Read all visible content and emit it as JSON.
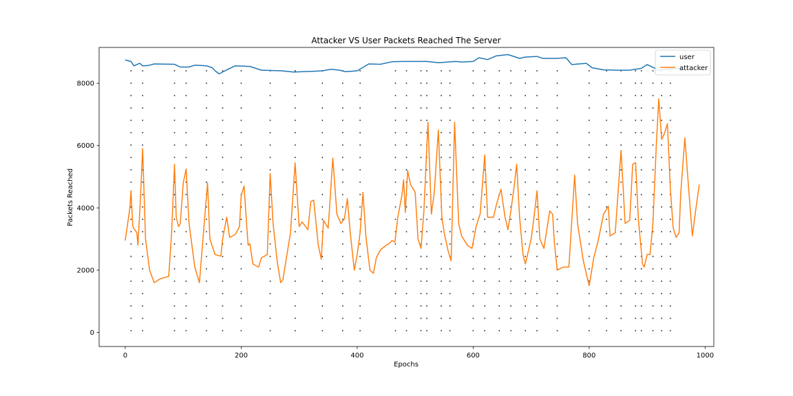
{
  "chart_data": {
    "type": "line",
    "title": "Attacker VS User Packets Reached The Server",
    "xlabel": "Epochs",
    "ylabel": "Packets Reached",
    "xlim": [
      -45,
      1015
    ],
    "ylim": [
      -450,
      9150
    ],
    "x_ticks": [
      0,
      200,
      400,
      600,
      800,
      1000
    ],
    "y_ticks": [
      0,
      2000,
      4000,
      6000,
      8000
    ],
    "grid": false,
    "legend": "top-right",
    "colors": {
      "user": "#1f77b4",
      "attacker": "#ff7f0e",
      "markers": "#444444"
    },
    "series": [
      {
        "name": "user",
        "points": [
          [
            0,
            8750
          ],
          [
            10,
            8700
          ],
          [
            15,
            8560
          ],
          [
            25,
            8640
          ],
          [
            30,
            8560
          ],
          [
            40,
            8570
          ],
          [
            50,
            8620
          ],
          [
            85,
            8610
          ],
          [
            95,
            8520
          ],
          [
            110,
            8520
          ],
          [
            120,
            8580
          ],
          [
            140,
            8560
          ],
          [
            150,
            8500
          ],
          [
            155,
            8400
          ],
          [
            162,
            8300
          ],
          [
            175,
            8430
          ],
          [
            190,
            8560
          ],
          [
            215,
            8540
          ],
          [
            235,
            8420
          ],
          [
            270,
            8400
          ],
          [
            290,
            8360
          ],
          [
            320,
            8380
          ],
          [
            340,
            8400
          ],
          [
            355,
            8450
          ],
          [
            370,
            8420
          ],
          [
            380,
            8370
          ],
          [
            400,
            8400
          ],
          [
            410,
            8510
          ],
          [
            420,
            8620
          ],
          [
            440,
            8610
          ],
          [
            460,
            8690
          ],
          [
            480,
            8700
          ],
          [
            520,
            8700
          ],
          [
            540,
            8660
          ],
          [
            570,
            8700
          ],
          [
            580,
            8680
          ],
          [
            600,
            8700
          ],
          [
            610,
            8820
          ],
          [
            625,
            8760
          ],
          [
            640,
            8880
          ],
          [
            660,
            8920
          ],
          [
            680,
            8800
          ],
          [
            690,
            8840
          ],
          [
            710,
            8860
          ],
          [
            720,
            8800
          ],
          [
            745,
            8800
          ],
          [
            760,
            8820
          ],
          [
            770,
            8600
          ],
          [
            795,
            8640
          ],
          [
            805,
            8500
          ],
          [
            825,
            8430
          ],
          [
            850,
            8420
          ],
          [
            870,
            8420
          ],
          [
            890,
            8480
          ],
          [
            900,
            8600
          ],
          [
            920,
            8420
          ],
          [
            940,
            8460
          ],
          [
            955,
            8480
          ],
          [
            965,
            8420
          ]
        ]
      },
      {
        "name": "attacker",
        "points": [
          [
            0,
            2950
          ],
          [
            8,
            4000
          ],
          [
            10,
            4550
          ],
          [
            13,
            3400
          ],
          [
            20,
            3200
          ],
          [
            22,
            2800
          ],
          [
            26,
            4200
          ],
          [
            30,
            5900
          ],
          [
            35,
            3000
          ],
          [
            42,
            2000
          ],
          [
            50,
            1600
          ],
          [
            60,
            1720
          ],
          [
            75,
            1800
          ],
          [
            80,
            3200
          ],
          [
            85,
            5400
          ],
          [
            88,
            3700
          ],
          [
            92,
            3400
          ],
          [
            95,
            3500
          ],
          [
            100,
            4800
          ],
          [
            105,
            5250
          ],
          [
            110,
            3500
          ],
          [
            120,
            2100
          ],
          [
            128,
            1600
          ],
          [
            135,
            3200
          ],
          [
            142,
            4800
          ],
          [
            146,
            3000
          ],
          [
            155,
            2500
          ],
          [
            165,
            2450
          ],
          [
            168,
            3000
          ],
          [
            175,
            3700
          ],
          [
            180,
            3050
          ],
          [
            190,
            3150
          ],
          [
            197,
            3400
          ],
          [
            200,
            4400
          ],
          [
            205,
            4700
          ],
          [
            210,
            3300
          ],
          [
            212,
            2800
          ],
          [
            215,
            2850
          ],
          [
            220,
            2200
          ],
          [
            230,
            2100
          ],
          [
            235,
            2400
          ],
          [
            245,
            2500
          ],
          [
            250,
            5100
          ],
          [
            255,
            3500
          ],
          [
            262,
            2300
          ],
          [
            268,
            1600
          ],
          [
            272,
            1700
          ],
          [
            278,
            2400
          ],
          [
            285,
            3200
          ],
          [
            293,
            5450
          ],
          [
            300,
            3400
          ],
          [
            305,
            3550
          ],
          [
            315,
            3300
          ],
          [
            320,
            4200
          ],
          [
            325,
            4250
          ],
          [
            333,
            2800
          ],
          [
            338,
            2350
          ],
          [
            342,
            3600
          ],
          [
            350,
            3350
          ],
          [
            358,
            5600
          ],
          [
            365,
            3800
          ],
          [
            372,
            3500
          ],
          [
            378,
            3650
          ],
          [
            383,
            4300
          ],
          [
            388,
            3200
          ],
          [
            395,
            2000
          ],
          [
            400,
            2500
          ],
          [
            405,
            3200
          ],
          [
            410,
            4500
          ],
          [
            415,
            3100
          ],
          [
            422,
            2000
          ],
          [
            428,
            1900
          ],
          [
            433,
            2400
          ],
          [
            440,
            2650
          ],
          [
            450,
            2800
          ],
          [
            455,
            2850
          ],
          [
            460,
            2950
          ],
          [
            465,
            2900
          ],
          [
            470,
            3700
          ],
          [
            477,
            4400
          ],
          [
            480,
            4900
          ],
          [
            483,
            3850
          ],
          [
            487,
            5200
          ],
          [
            492,
            4750
          ],
          [
            500,
            4500
          ],
          [
            505,
            3000
          ],
          [
            510,
            2700
          ],
          [
            515,
            3900
          ],
          [
            522,
            6750
          ],
          [
            528,
            3800
          ],
          [
            533,
            4500
          ],
          [
            540,
            6500
          ],
          [
            546,
            3700
          ],
          [
            550,
            3200
          ],
          [
            557,
            2600
          ],
          [
            562,
            2300
          ],
          [
            568,
            6750
          ],
          [
            575,
            3500
          ],
          [
            580,
            3100
          ],
          [
            590,
            2800
          ],
          [
            598,
            2700
          ],
          [
            605,
            3400
          ],
          [
            612,
            3800
          ],
          [
            620,
            5700
          ],
          [
            625,
            3700
          ],
          [
            635,
            3700
          ],
          [
            640,
            4100
          ],
          [
            648,
            4600
          ],
          [
            655,
            3700
          ],
          [
            660,
            3300
          ],
          [
            665,
            3900
          ],
          [
            670,
            4600
          ],
          [
            675,
            5400
          ],
          [
            680,
            3700
          ],
          [
            686,
            2500
          ],
          [
            690,
            2200
          ],
          [
            700,
            3000
          ],
          [
            705,
            3700
          ],
          [
            710,
            4550
          ],
          [
            715,
            3000
          ],
          [
            722,
            2700
          ],
          [
            732,
            3900
          ],
          [
            737,
            3800
          ],
          [
            740,
            2900
          ],
          [
            745,
            2000
          ],
          [
            755,
            2100
          ],
          [
            765,
            2100
          ],
          [
            775,
            5050
          ],
          [
            780,
            3500
          ],
          [
            790,
            2300
          ],
          [
            800,
            1500
          ],
          [
            808,
            2400
          ],
          [
            815,
            2900
          ],
          [
            825,
            3800
          ],
          [
            833,
            4050
          ],
          [
            836,
            3100
          ],
          [
            845,
            3200
          ],
          [
            855,
            5850
          ],
          [
            862,
            3500
          ],
          [
            870,
            3600
          ],
          [
            875,
            5400
          ],
          [
            880,
            5450
          ],
          [
            885,
            3600
          ],
          [
            892,
            2200
          ],
          [
            895,
            2100
          ],
          [
            900,
            2500
          ],
          [
            905,
            2500
          ],
          [
            910,
            3500
          ],
          [
            916,
            6100
          ],
          [
            920,
            7500
          ],
          [
            925,
            6200
          ],
          [
            930,
            6400
          ],
          [
            935,
            6700
          ],
          [
            940,
            4600
          ],
          [
            945,
            3350
          ],
          [
            950,
            3050
          ],
          [
            955,
            3200
          ],
          [
            958,
            4500
          ],
          [
            965,
            6250
          ],
          [
            972,
            4500
          ],
          [
            978,
            3100
          ],
          [
            985,
            4100
          ],
          [
            990,
            4750
          ]
        ]
      }
    ],
    "marker_x": [
      10,
      30,
      85,
      105,
      140,
      168,
      200,
      250,
      293,
      340,
      375,
      405,
      466,
      485,
      510,
      520,
      545,
      560,
      600,
      620,
      645,
      665,
      690,
      710,
      745,
      800,
      830,
      855,
      880,
      890,
      910,
      925,
      940
    ]
  }
}
